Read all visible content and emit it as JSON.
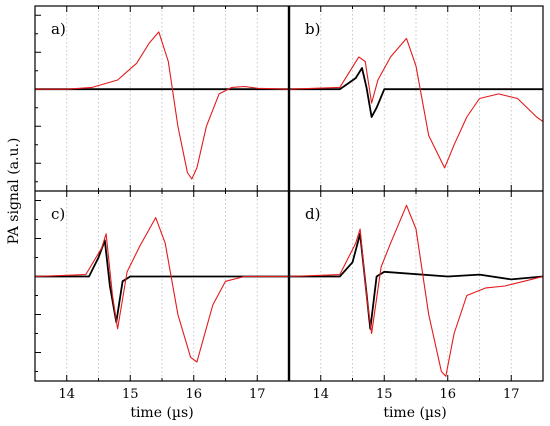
{
  "figure": {
    "ylabel": "PA signal (a.u.)",
    "xlabel": "time (µs)",
    "xticks": [
      "14",
      "15",
      "16",
      "17"
    ]
  },
  "colors": {
    "black_series": "#000000",
    "red_series": "#e41a1c",
    "grid": "#bbbbbb"
  },
  "chart_data": [
    {
      "type": "line",
      "panel": "a)",
      "xlim": [
        13.5,
        17.5
      ],
      "ylim": [
        -1.1,
        0.9
      ],
      "grid": "x-dotted",
      "series": [
        {
          "color": "black",
          "x": [
            13.5,
            14.0,
            14.5,
            15.0,
            15.5,
            16.0,
            16.5,
            17.0,
            17.5
          ],
          "y": [
            0,
            0,
            0,
            0,
            0,
            0,
            0,
            0,
            0
          ]
        },
        {
          "color": "red",
          "x": [
            13.5,
            14.0,
            14.4,
            14.8,
            15.1,
            15.3,
            15.45,
            15.6,
            15.75,
            15.9,
            15.97,
            16.05,
            16.2,
            16.4,
            16.6,
            16.8,
            17.0,
            17.5
          ],
          "y": [
            0,
            0,
            0.02,
            0.1,
            0.28,
            0.5,
            0.62,
            0.3,
            -0.4,
            -0.9,
            -0.97,
            -0.85,
            -0.4,
            -0.05,
            0.02,
            0.03,
            0.01,
            0
          ]
        }
      ]
    },
    {
      "type": "line",
      "panel": "b)",
      "xlim": [
        13.5,
        17.5
      ],
      "ylim": [
        -1.1,
        0.9
      ],
      "grid": "x-dotted",
      "series": [
        {
          "color": "black",
          "x": [
            13.5,
            14.3,
            14.55,
            14.65,
            14.72,
            14.8,
            14.88,
            15.0,
            17.5
          ],
          "y": [
            0,
            0,
            0.12,
            0.23,
            0.02,
            -0.3,
            -0.2,
            0,
            0
          ]
        },
        {
          "color": "red",
          "x": [
            13.5,
            14.3,
            14.6,
            14.7,
            14.8,
            14.9,
            15.1,
            15.35,
            15.5,
            15.7,
            15.95,
            16.1,
            16.3,
            16.5,
            16.8,
            17.1,
            17.4,
            17.5
          ],
          "y": [
            0,
            0.02,
            0.35,
            0.3,
            -0.15,
            0.1,
            0.35,
            0.55,
            0.25,
            -0.5,
            -0.85,
            -0.6,
            -0.3,
            -0.1,
            -0.05,
            -0.1,
            -0.3,
            -0.35
          ]
        }
      ]
    },
    {
      "type": "line",
      "panel": "c)",
      "xlim": [
        13.5,
        17.5
      ],
      "ylim": [
        -1.1,
        0.9
      ],
      "grid": "x-dotted",
      "series": [
        {
          "color": "black",
          "x": [
            13.5,
            14.35,
            14.5,
            14.6,
            14.68,
            14.78,
            14.88,
            15.0,
            17.5
          ],
          "y": [
            0,
            0,
            0.2,
            0.38,
            -0.1,
            -0.48,
            -0.05,
            0,
            0
          ]
        },
        {
          "color": "red",
          "x": [
            13.5,
            14.3,
            14.55,
            14.62,
            14.72,
            14.8,
            14.95,
            15.15,
            15.4,
            15.55,
            15.75,
            15.95,
            16.05,
            16.3,
            16.5,
            16.8,
            17.1,
            17.5
          ],
          "y": [
            0,
            0.02,
            0.3,
            0.45,
            -0.2,
            -0.55,
            0.05,
            0.32,
            0.62,
            0.35,
            -0.4,
            -0.85,
            -0.9,
            -0.3,
            -0.05,
            0,
            0,
            0
          ]
        }
      ]
    },
    {
      "type": "line",
      "panel": "d)",
      "xlim": [
        13.5,
        17.5
      ],
      "ylim": [
        -1.1,
        0.9
      ],
      "grid": "x-dotted",
      "series": [
        {
          "color": "black",
          "x": [
            13.5,
            14.3,
            14.5,
            14.62,
            14.7,
            14.78,
            14.88,
            15.0,
            16.0,
            16.5,
            17.0,
            17.5
          ],
          "y": [
            0,
            0,
            0.15,
            0.45,
            -0.05,
            -0.55,
            0,
            0.05,
            0,
            0.02,
            -0.03,
            0
          ]
        },
        {
          "color": "red",
          "x": [
            13.5,
            14.3,
            14.55,
            14.62,
            14.72,
            14.8,
            14.95,
            15.1,
            15.35,
            15.5,
            15.7,
            15.9,
            15.97,
            16.1,
            16.3,
            16.6,
            16.9,
            17.2,
            17.5
          ],
          "y": [
            0,
            0.02,
            0.35,
            0.5,
            -0.2,
            -0.6,
            0.1,
            0.35,
            0.75,
            0.5,
            -0.4,
            -1.0,
            -1.05,
            -0.6,
            -0.2,
            -0.12,
            -0.1,
            -0.05,
            0
          ]
        }
      ]
    }
  ]
}
